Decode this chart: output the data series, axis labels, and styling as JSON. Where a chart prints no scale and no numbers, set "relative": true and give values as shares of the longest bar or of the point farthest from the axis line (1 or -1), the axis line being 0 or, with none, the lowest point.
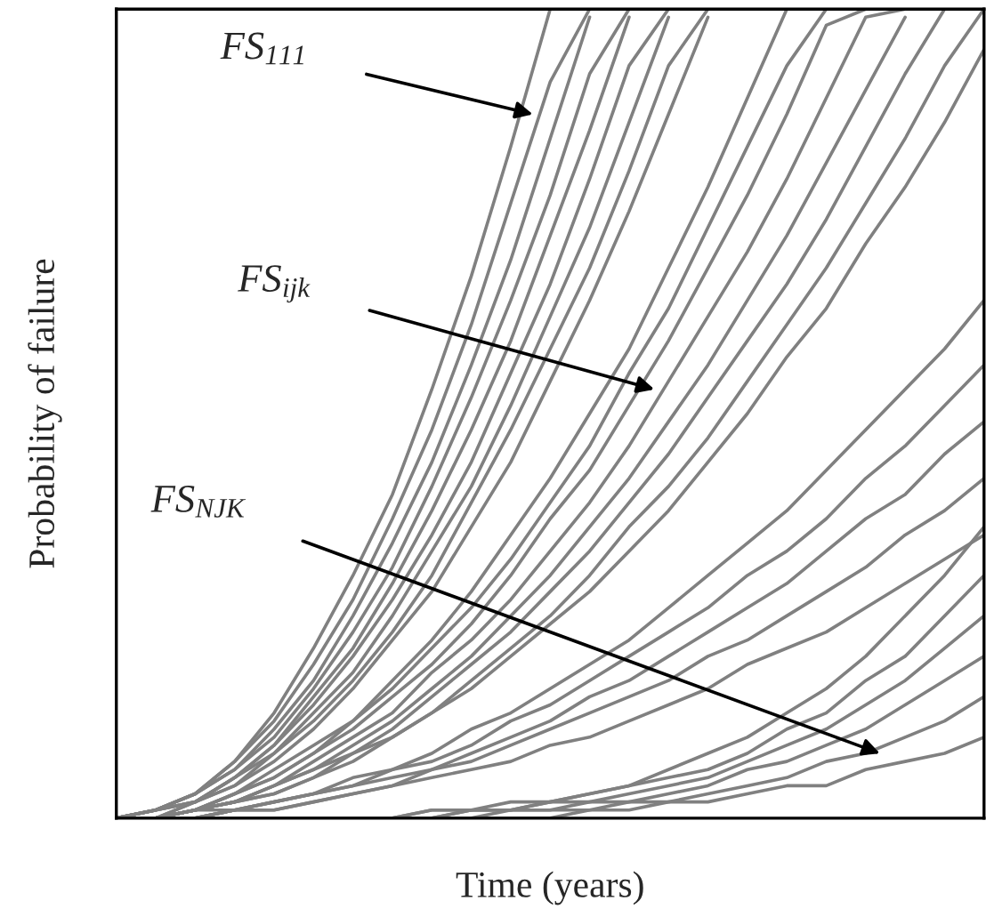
{
  "chart_data": {
    "type": "line",
    "relative": true,
    "xlabel": "Time (years)",
    "ylabel": "Probability of failure",
    "annotations": [
      "FS$_{111}$",
      "FS$_{ijk}$",
      "FS$_{NJK}$"
    ],
    "categories": [
      null,
      null,
      null,
      null,
      null,
      null,
      null,
      null,
      null,
      null,
      null,
      null,
      null,
      null,
      null,
      null,
      null,
      null,
      null,
      null,
      null,
      null,
      null
    ],
    "grid": false,
    "legend": false,
    "marker": "none",
    "line_style": "solid",
    "series": [
      {
        "color": "#808080",
        "values": [
          0,
          0.01,
          0.03,
          0.07,
          0.13,
          0.21,
          0.3,
          0.4,
          0.53,
          0.67,
          0.83,
          1,
          null,
          null,
          null,
          null,
          null,
          null,
          null,
          null,
          null,
          null,
          null
        ]
      },
      {
        "color": "#808080",
        "values": [
          0,
          0.01,
          0.03,
          0.07,
          0.12,
          0.19,
          0.27,
          0.37,
          0.48,
          0.61,
          0.76,
          0.91,
          1,
          null,
          null,
          null,
          null,
          null,
          null,
          null,
          null,
          null,
          null
        ]
      },
      {
        "color": "#808080",
        "values": [
          0,
          0.01,
          0.03,
          0.06,
          0.11,
          0.17,
          0.25,
          0.34,
          0.44,
          0.56,
          0.69,
          0.84,
          0.99,
          null,
          null,
          null,
          null,
          null,
          null,
          null,
          null,
          null,
          null
        ]
      },
      {
        "color": "#808080",
        "values": [
          0,
          0.01,
          0.03,
          0.06,
          0.1,
          0.16,
          0.23,
          0.31,
          0.41,
          0.52,
          0.64,
          0.77,
          0.92,
          1,
          null,
          null,
          null,
          null,
          null,
          null,
          null,
          null,
          null
        ]
      },
      {
        "color": "#808080",
        "values": [
          0,
          0.01,
          0.02,
          0.05,
          0.09,
          0.15,
          0.21,
          0.29,
          0.38,
          0.48,
          0.59,
          0.72,
          0.85,
          0.99,
          null,
          null,
          null,
          null,
          null,
          null,
          null,
          null,
          null
        ]
      },
      {
        "color": "#808080",
        "values": [
          0,
          0.01,
          0.02,
          0.05,
          0.09,
          0.14,
          0.2,
          0.27,
          0.35,
          0.44,
          0.55,
          0.66,
          0.79,
          0.93,
          1,
          null,
          null,
          null,
          null,
          null,
          null,
          null,
          null
        ]
      },
      {
        "color": "#808080",
        "values": [
          0,
          0.01,
          0.02,
          0.05,
          0.08,
          0.13,
          0.18,
          0.25,
          0.33,
          0.41,
          0.51,
          0.62,
          0.73,
          0.86,
          0.99,
          null,
          null,
          null,
          null,
          null,
          null,
          null,
          null
        ]
      },
      {
        "color": "#808080",
        "values": [
          0,
          0,
          0.02,
          0.04,
          0.08,
          0.12,
          0.17,
          0.23,
          0.3,
          0.39,
          0.48,
          0.58,
          0.68,
          0.8,
          0.93,
          1,
          null,
          null,
          null,
          null,
          null,
          null,
          null
        ]
      },
      {
        "color": "#808080",
        "values": [
          0,
          0,
          0.02,
          0.04,
          0.07,
          0.11,
          0.16,
          0.22,
          0.28,
          0.36,
          0.44,
          0.54,
          0.64,
          0.75,
          0.87,
          0.99,
          null,
          null,
          null,
          null,
          null,
          null,
          null
        ]
      },
      {
        "color": "#808080",
        "values": [
          0,
          0,
          0.01,
          0.03,
          0.06,
          0.09,
          0.12,
          0.17,
          0.22,
          0.28,
          0.35,
          0.42,
          0.5,
          0.58,
          0.68,
          0.78,
          0.89,
          1,
          null,
          null,
          null,
          null,
          null
        ]
      },
      {
        "color": "#808080",
        "values": [
          0,
          0,
          0.01,
          0.03,
          0.05,
          0.08,
          0.12,
          0.16,
          0.21,
          0.26,
          0.32,
          0.39,
          0.46,
          0.55,
          0.63,
          0.73,
          0.83,
          0.93,
          1,
          null,
          null,
          null,
          null
        ]
      },
      {
        "color": "#808080",
        "values": [
          0,
          0,
          0.01,
          0.03,
          0.05,
          0.08,
          0.11,
          0.15,
          0.19,
          0.24,
          0.3,
          0.37,
          0.43,
          0.51,
          0.59,
          0.68,
          0.77,
          0.87,
          0.98,
          1,
          null,
          null,
          null
        ]
      },
      {
        "color": "#808080",
        "values": [
          0,
          0,
          0.01,
          0.02,
          0.04,
          0.07,
          0.1,
          0.13,
          0.18,
          0.22,
          0.27,
          0.33,
          0.39,
          0.46,
          0.54,
          0.62,
          0.7,
          0.79,
          0.89,
          0.99,
          1,
          null,
          null
        ]
      },
      {
        "color": "#808080",
        "values": [
          0,
          0,
          0.01,
          0.02,
          0.04,
          0.06,
          0.09,
          0.12,
          0.16,
          0.2,
          0.25,
          0.3,
          0.36,
          0.42,
          0.49,
          0.56,
          0.64,
          0.72,
          0.81,
          0.9,
          0.99,
          null,
          null
        ]
      },
      {
        "color": "#808080",
        "values": [
          0,
          0,
          0.01,
          0.02,
          0.04,
          0.06,
          0.08,
          0.11,
          0.15,
          0.19,
          0.23,
          0.28,
          0.33,
          0.39,
          0.45,
          0.52,
          0.59,
          0.66,
          0.74,
          0.83,
          0.92,
          1,
          null
        ]
      },
      {
        "color": "#808080",
        "values": [
          0,
          0,
          0.01,
          0.02,
          0.03,
          0.05,
          0.08,
          0.1,
          0.13,
          0.17,
          0.21,
          0.25,
          0.3,
          0.36,
          0.41,
          0.47,
          0.54,
          0.61,
          0.68,
          0.76,
          0.84,
          0.93,
          1
        ]
      },
      {
        "color": "#808080",
        "values": [
          0,
          0,
          0.01,
          0.02,
          0.03,
          0.05,
          0.07,
          0.1,
          0.13,
          0.16,
          0.2,
          0.24,
          0.28,
          0.33,
          0.38,
          0.44,
          0.5,
          0.57,
          0.63,
          0.71,
          0.78,
          0.86,
          0.95
        ]
      },
      {
        "color": "#808080",
        "values": [
          0,
          0,
          0.01,
          0.01,
          0.02,
          0.03,
          0.05,
          0.06,
          0.08,
          0.11,
          0.13,
          0.16,
          0.19,
          0.22,
          0.26,
          0.3,
          0.34,
          0.38,
          0.43,
          0.48,
          0.53,
          0.58,
          0.64
        ]
      },
      {
        "color": "#808080",
        "values": [
          0,
          0,
          0,
          0.01,
          0.02,
          0.03,
          0.04,
          0.06,
          0.07,
          0.09,
          0.12,
          0.14,
          0.17,
          0.2,
          0.23,
          0.26,
          0.3,
          0.33,
          0.37,
          0.42,
          0.46,
          0.51,
          0.56
        ]
      },
      {
        "color": "#808080",
        "values": [
          0,
          0,
          0,
          0.01,
          0.02,
          0.03,
          0.04,
          0.05,
          0.06,
          0.08,
          0.1,
          0.12,
          0.15,
          0.17,
          0.2,
          0.23,
          0.26,
          0.29,
          0.33,
          0.37,
          0.4,
          0.45,
          0.49
        ]
      },
      {
        "color": "#808080",
        "values": [
          0,
          0,
          0,
          0.01,
          0.01,
          0.02,
          0.03,
          0.04,
          0.06,
          0.07,
          0.09,
          0.11,
          0.13,
          0.15,
          0.17,
          0.2,
          0.22,
          0.25,
          0.28,
          0.31,
          0.35,
          0.38,
          0.42
        ]
      },
      {
        "color": "#808080",
        "values": [
          0,
          0,
          0,
          0.01,
          0.01,
          0.02,
          0.03,
          0.04,
          0.05,
          0.06,
          0.07,
          0.09,
          0.1,
          0.12,
          0.14,
          0.16,
          0.19,
          0.21,
          0.23,
          0.26,
          0.29,
          0.32,
          0.35
        ]
      },
      {
        "color": "#808080",
        "values": [
          0,
          0,
          0,
          0,
          0,
          0,
          0,
          0,
          0.01,
          0.01,
          0.02,
          0.02,
          0.03,
          0.04,
          0.06,
          0.08,
          0.1,
          0.13,
          0.16,
          0.2,
          0.25,
          0.3,
          0.36
        ]
      },
      {
        "color": "#808080",
        "values": [
          0,
          0,
          0,
          0,
          0,
          0,
          0,
          0,
          0.01,
          0.01,
          0.01,
          0.02,
          0.03,
          0.04,
          0.05,
          0.06,
          0.08,
          0.11,
          0.13,
          0.17,
          0.2,
          0.25,
          0.3
        ]
      },
      {
        "color": "#808080",
        "values": [
          0,
          0,
          0,
          0,
          0,
          0,
          0,
          0,
          0,
          0.01,
          0.01,
          0.02,
          0.02,
          0.03,
          0.04,
          0.05,
          0.07,
          0.09,
          0.11,
          0.14,
          0.17,
          0.21,
          0.25
        ]
      },
      {
        "color": "#808080",
        "values": [
          0,
          0,
          0,
          0,
          0,
          0,
          0,
          0,
          0,
          0.01,
          0.01,
          0.01,
          0.02,
          0.02,
          0.03,
          0.04,
          0.06,
          0.07,
          0.09,
          0.11,
          0.14,
          0.17,
          0.2
        ]
      },
      {
        "color": "#808080",
        "values": [
          0,
          0,
          0,
          0,
          0,
          0,
          0,
          0,
          0,
          0,
          0.01,
          0.01,
          0.01,
          0.02,
          0.02,
          0.03,
          0.04,
          0.05,
          0.07,
          0.08,
          0.1,
          0.12,
          0.15
        ]
      },
      {
        "color": "#808080",
        "values": [
          0,
          0,
          0,
          0,
          0,
          0,
          0,
          0,
          0,
          0,
          0,
          0,
          0.01,
          0.01,
          0.02,
          0.02,
          0.03,
          0.04,
          0.04,
          0.06,
          0.07,
          0.08,
          0.1
        ]
      }
    ]
  }
}
